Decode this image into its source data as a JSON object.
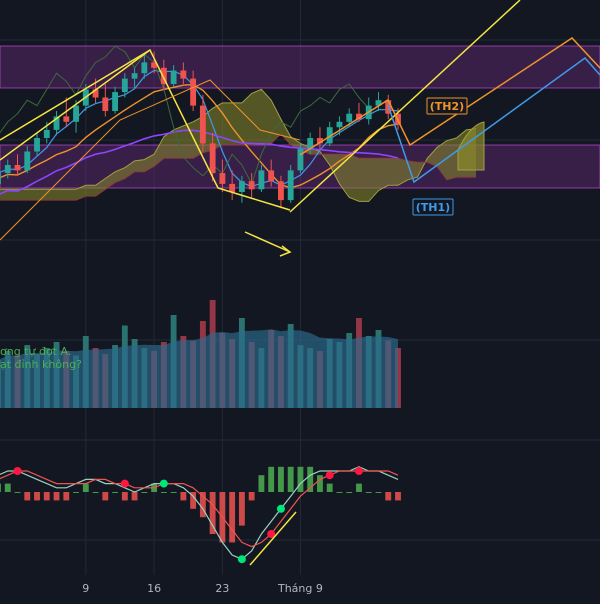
{
  "colors": {
    "background": "#131722",
    "grid": "#232838",
    "up": "#26a69a",
    "down": "#ef5350",
    "zone_fill": "#7b2d8e",
    "zone_edge": "#c248d6",
    "cloud_bull": "#8a8a2a",
    "cloud_bear": "#6b6f8a",
    "yellow": "#f5e642",
    "orange": "#f0932b",
    "blue": "#3d9be9",
    "purple_ma": "#8e44ff",
    "volume": "#2d6b8f",
    "macd_pos": "#4caf50",
    "macd_neg": "#ef5350",
    "label_green": "#4caf50",
    "white": "#d1d4dc"
  },
  "labels": {
    "th2": "(TH2)",
    "th1": "(TH1)",
    "annotation_line1": "ơng tự đợt A.",
    "annotation_line2": "ạt đỉnh không?"
  },
  "chart_data": [
    {
      "type": "candlestick",
      "panel": "price",
      "title": "",
      "xlabel": "",
      "ylabel": "",
      "x_tick_labels": [
        "9",
        "16",
        "23",
        "Tháng 9"
      ],
      "x_tick_index": [
        9,
        16,
        23,
        31
      ],
      "grid": true,
      "ylim": [
        0,
        100
      ],
      "candles": [
        {
          "o": 43,
          "h": 49,
          "l": 40,
          "c": 47
        },
        {
          "o": 47,
          "h": 52,
          "l": 45,
          "c": 50
        },
        {
          "o": 50,
          "h": 54,
          "l": 46,
          "c": 48
        },
        {
          "o": 48,
          "h": 57,
          "l": 47,
          "c": 55
        },
        {
          "o": 55,
          "h": 62,
          "l": 53,
          "c": 60
        },
        {
          "o": 60,
          "h": 66,
          "l": 58,
          "c": 63
        },
        {
          "o": 63,
          "h": 70,
          "l": 61,
          "c": 68
        },
        {
          "o": 68,
          "h": 75,
          "l": 64,
          "c": 66
        },
        {
          "o": 66,
          "h": 74,
          "l": 62,
          "c": 72
        },
        {
          "o": 72,
          "h": 80,
          "l": 70,
          "c": 78
        },
        {
          "o": 78,
          "h": 82,
          "l": 73,
          "c": 75
        },
        {
          "o": 75,
          "h": 80,
          "l": 68,
          "c": 70
        },
        {
          "o": 70,
          "h": 79,
          "l": 69,
          "c": 77
        },
        {
          "o": 77,
          "h": 84,
          "l": 75,
          "c": 82
        },
        {
          "o": 82,
          "h": 86,
          "l": 78,
          "c": 84
        },
        {
          "o": 84,
          "h": 91,
          "l": 82,
          "c": 88
        },
        {
          "o": 88,
          "h": 92,
          "l": 84,
          "c": 86
        },
        {
          "o": 86,
          "h": 89,
          "l": 78,
          "c": 80
        },
        {
          "o": 80,
          "h": 87,
          "l": 79,
          "c": 85
        },
        {
          "o": 85,
          "h": 88,
          "l": 80,
          "c": 82
        },
        {
          "o": 82,
          "h": 85,
          "l": 70,
          "c": 72
        },
        {
          "o": 72,
          "h": 76,
          "l": 55,
          "c": 58
        },
        {
          "o": 58,
          "h": 62,
          "l": 44,
          "c": 47
        },
        {
          "o": 47,
          "h": 52,
          "l": 40,
          "c": 43
        },
        {
          "o": 43,
          "h": 48,
          "l": 37,
          "c": 40
        },
        {
          "o": 40,
          "h": 46,
          "l": 36,
          "c": 44
        },
        {
          "o": 44,
          "h": 47,
          "l": 38,
          "c": 41
        },
        {
          "o": 41,
          "h": 50,
          "l": 40,
          "c": 48
        },
        {
          "o": 48,
          "h": 52,
          "l": 42,
          "c": 44
        },
        {
          "o": 44,
          "h": 46,
          "l": 34,
          "c": 37
        },
        {
          "o": 37,
          "h": 50,
          "l": 36,
          "c": 48
        },
        {
          "o": 48,
          "h": 58,
          "l": 47,
          "c": 56
        },
        {
          "o": 56,
          "h": 62,
          "l": 54,
          "c": 60
        },
        {
          "o": 60,
          "h": 64,
          "l": 56,
          "c": 58
        },
        {
          "o": 58,
          "h": 66,
          "l": 57,
          "c": 64
        },
        {
          "o": 64,
          "h": 68,
          "l": 61,
          "c": 66
        },
        {
          "o": 66,
          "h": 71,
          "l": 64,
          "c": 69
        },
        {
          "o": 69,
          "h": 73,
          "l": 66,
          "c": 67
        },
        {
          "o": 67,
          "h": 75,
          "l": 65,
          "c": 72
        },
        {
          "o": 72,
          "h": 77,
          "l": 70,
          "c": 74
        },
        {
          "o": 74,
          "h": 76,
          "l": 67,
          "c": 69
        },
        {
          "o": 69,
          "h": 71,
          "l": 63,
          "c": 65
        }
      ]
    },
    {
      "type": "bar",
      "panel": "volume",
      "title": "",
      "values": [
        32,
        38,
        35,
        42,
        36,
        40,
        44,
        38,
        35,
        48,
        40,
        36,
        42,
        55,
        46,
        40,
        38,
        44,
        62,
        48,
        45,
        58,
        72,
        50,
        46,
        60,
        44,
        40,
        52,
        48,
        56,
        42,
        40,
        38,
        46,
        44,
        50,
        60,
        48,
        52,
        45,
        40
      ]
    },
    {
      "type": "line",
      "panel": "macd",
      "title": "",
      "series": [
        {
          "values": [
            4,
            5,
            5,
            4,
            3,
            2,
            1,
            1,
            2,
            3,
            3,
            2,
            2,
            1,
            0,
            1,
            2,
            2,
            2,
            1,
            -1,
            -4,
            -8,
            -12,
            -15,
            -16,
            -14,
            -10,
            -7,
            -4,
            -1,
            2,
            4,
            5,
            5,
            5,
            5,
            6,
            5,
            5,
            4,
            3
          ]
        },
        {
          "values": [
            3,
            4,
            5,
            5,
            4,
            3,
            2,
            2,
            2,
            2,
            3,
            3,
            2,
            2,
            1,
            1,
            1,
            2,
            2,
            2,
            1,
            -1,
            -3,
            -6,
            -9,
            -12,
            -13,
            -12,
            -10,
            -7,
            -4,
            -1,
            1,
            3,
            4,
            5,
            5,
            5,
            5,
            5,
            5,
            4
          ]
        }
      ],
      "histogram": [
        1,
        1,
        0,
        -1,
        -1,
        -1,
        -1,
        -1,
        0,
        1,
        0,
        -1,
        0,
        -1,
        -1,
        0,
        1,
        0,
        0,
        -1,
        -2,
        -3,
        -5,
        -6,
        -6,
        -4,
        -1,
        2,
        3,
        3,
        3,
        3,
        3,
        2,
        1,
        0,
        0,
        1,
        0,
        0,
        -1,
        -1
      ]
    }
  ]
}
